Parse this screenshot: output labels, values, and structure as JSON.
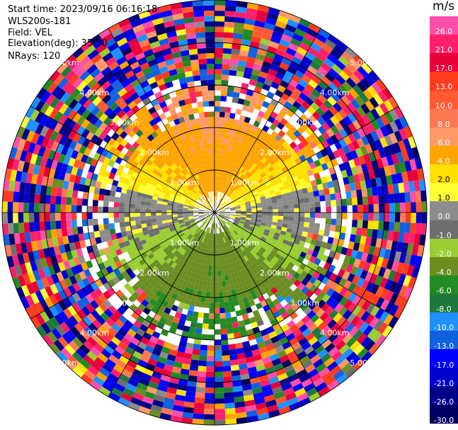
{
  "header": {
    "start_time": "Start time: 2023/09/16 06:16:18",
    "instrument": "WLS200s-181",
    "field": "Field: VEL",
    "elevation": "Elevation(deg): 35.30",
    "nrays": "NRays: 120"
  },
  "colorbar": {
    "unit": "m/s",
    "ticks": [
      "26.0",
      "21.0",
      "17.0",
      "13.0",
      "10.0",
      "8.0",
      "6.0",
      "4.0",
      "2.0",
      "1.0",
      "0.0",
      "-1.0",
      "-2.0",
      "-4.0",
      "-6.0",
      "-8.0",
      "-10.0",
      "-13.0",
      "-17.0",
      "-21.0",
      "-26.0",
      "-30.0"
    ],
    "colors": [
      "#ff4fa8",
      "#ff1f6a",
      "#e8003a",
      "#ff3c1e",
      "#ff5a32",
      "#ff7a52",
      "#ff9a66",
      "#ffa500",
      "#ffe000",
      "#ffff33",
      "#8c8c8c",
      "#6e6e6e",
      "#9acd32",
      "#6b8e23",
      "#228b22",
      "#1e7a3c",
      "#1e90ff",
      "#1060e0",
      "#0000ff",
      "#0000cd",
      "#00008b",
      "#000060"
    ]
  },
  "chart_data": {
    "type": "heatmap",
    "subtype": "radar PPI (plan position indicator)",
    "field": "VEL",
    "units": "m/s",
    "elevation_deg": 35.3,
    "n_rays": 120,
    "range_rings_km": [
      1.0,
      2.0,
      3.0,
      4.0,
      5.0
    ],
    "range_ring_labels": [
      "1.00km",
      "2.00km",
      "3.00km",
      "4.00km",
      "5.00km"
    ],
    "radial_lines_deg": [
      0,
      30,
      60,
      90,
      120,
      150,
      180,
      210,
      240,
      270,
      300,
      330
    ],
    "max_range_km": 5.0,
    "color_scale": {
      "min": -30.0,
      "max": 26.0,
      "ticks": [
        26.0,
        21.0,
        17.0,
        13.0,
        10.0,
        8.0,
        6.0,
        4.0,
        2.0,
        1.0,
        0.0,
        -1.0,
        -2.0,
        -4.0,
        -6.0,
        -8.0,
        -10.0,
        -13.0,
        -17.0,
        -21.0,
        -26.0,
        -30.0
      ]
    },
    "field_description": {
      "near_range_north_sector_ms": [
        2.0,
        8.0
      ],
      "near_range_south_sector_ms": [
        -8.0,
        -1.0
      ],
      "near_range_east_west_ms": [
        -1.0,
        1.0
      ],
      "far_range": "noise"
    }
  }
}
